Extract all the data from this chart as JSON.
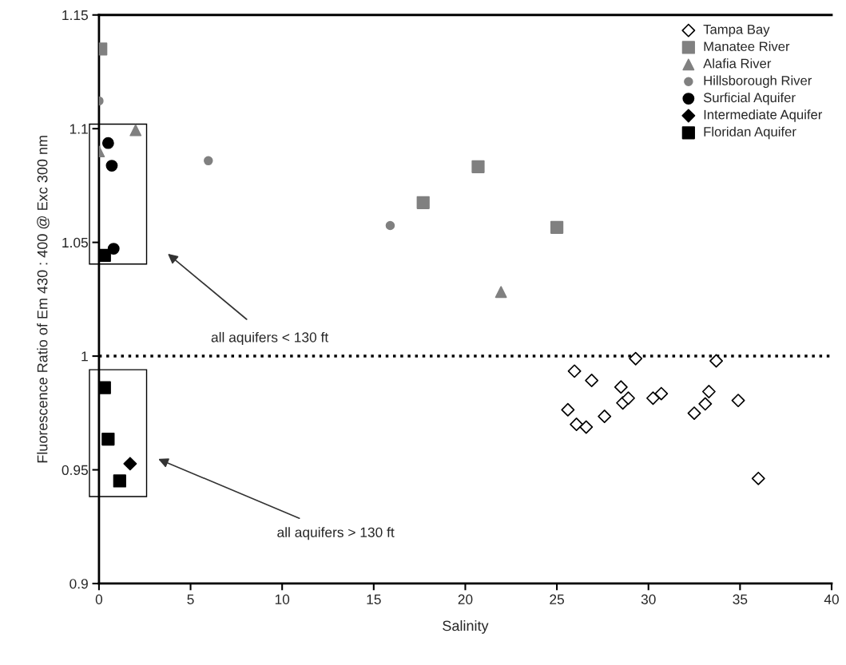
{
  "chart_data": {
    "type": "scatter",
    "xlabel": "Salinity",
    "ylabel": "Fluorescence Ratio of Em 430 : 400 @ Exc 300 nm",
    "xlim": [
      0,
      40
    ],
    "xticks": [
      0,
      5,
      10,
      15,
      20,
      25,
      30,
      35,
      40
    ],
    "ylim": [
      0.9,
      1.15
    ],
    "yticks": [
      0.9,
      0.95,
      1,
      1.05,
      1.1,
      1.15
    ],
    "grid": false,
    "legend": "top right",
    "ref_lines": [
      {
        "axis": "y",
        "value": 1,
        "color": "#000000",
        "line_style": "dotted"
      }
    ],
    "annotations": [
      "all aquifers < 130 ft",
      "all aquifers > 130 ft"
    ],
    "series": [
      {
        "name": "Tampa Bay",
        "color": "#ffffff",
        "marker": "diamond",
        "x": [
          25.96,
          26.9,
          29.3,
          25.6,
          26.07,
          26.6,
          27.6,
          28.5,
          28.6,
          28.9,
          30.25,
          30.7,
          32.5,
          33.1,
          33.3,
          33.7,
          34.9,
          36.0
        ],
        "values": [
          0.9934,
          0.9893,
          0.9989,
          0.9764,
          0.97,
          0.9688,
          0.9735,
          0.9864,
          0.9794,
          0.9815,
          0.9815,
          0.9835,
          0.9749,
          0.979,
          0.9844,
          0.9979,
          0.9805,
          0.9462
        ]
      },
      {
        "name": "Manatee River",
        "color": "#808080",
        "marker": "square",
        "x": [
          0.1,
          20.7,
          17.7,
          25.0
        ],
        "values": [
          1.135,
          1.0833,
          1.0675,
          1.0566
        ]
      },
      {
        "name": "Alafia River",
        "color": "#808080",
        "marker": "triangle",
        "x": [
          0,
          2.0,
          21.95
        ],
        "values": [
          1.09,
          1.0993,
          1.0282
        ]
      },
      {
        "name": "Hillsborough River",
        "color": "#808080",
        "marker": "circle",
        "x": [
          0,
          5.97,
          15.9
        ],
        "values": [
          1.1122,
          1.0859,
          1.0574
        ]
      },
      {
        "name": "Surficial Aquifer",
        "color": "#000000",
        "marker": "circle",
        "x": [
          0.5,
          0.7,
          0.8
        ],
        "values": [
          1.0937,
          1.0837,
          1.0472
        ]
      },
      {
        "name": "Intermediate Aquifer",
        "color": "#000000",
        "marker": "diamond",
        "x": [
          1.7
        ],
        "values": [
          0.9527
        ]
      },
      {
        "name": "Floridan Aquifer",
        "color": "#000000",
        "marker": "square",
        "x": [
          0.3,
          0.3,
          0.5,
          1.13
        ],
        "values": [
          1.0443,
          0.9861,
          0.9635,
          0.9451
        ]
      }
    ]
  }
}
